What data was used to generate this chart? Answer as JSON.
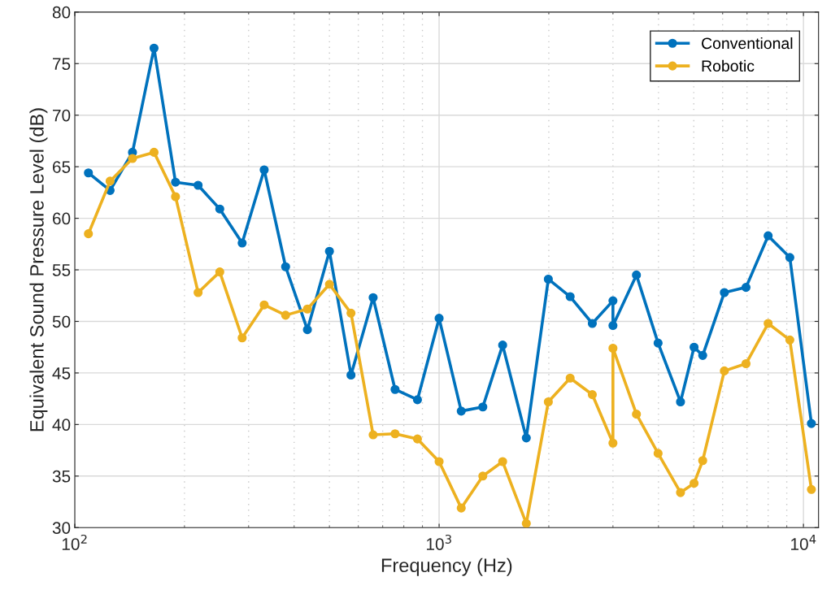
{
  "chart_data": {
    "type": "line",
    "xlabel": "Frequency (Hz)",
    "ylabel": "Equivalent Sound Pressure Level (dB)",
    "x": [
      109,
      125,
      144,
      165,
      189,
      218,
      250,
      288,
      331,
      379,
      435,
      500,
      573,
      659,
      757,
      872,
      1000,
      1150,
      1318,
      1494,
      1735,
      1994,
      2289,
      2633,
      3000,
      3000,
      3480,
      3990,
      4598,
      5009,
      5290,
      6066,
      6955,
      8000,
      9175,
      10515
    ],
    "series": [
      {
        "name": "Conventional",
        "color": "#0072bd",
        "values": [
          64.4,
          62.7,
          66.4,
          76.5,
          63.5,
          63.2,
          60.9,
          57.6,
          64.7,
          55.3,
          49.2,
          56.8,
          44.8,
          52.3,
          43.4,
          42.4,
          50.3,
          41.3,
          41.7,
          47.7,
          38.7,
          54.1,
          52.4,
          49.8,
          52.0,
          49.6,
          54.5,
          47.9,
          42.2,
          47.5,
          46.7,
          52.8,
          53.3,
          58.3,
          56.2,
          40.1
        ]
      },
      {
        "name": "Robotic",
        "color": "#edb120",
        "values": [
          58.5,
          63.6,
          65.8,
          66.4,
          62.1,
          52.8,
          54.8,
          48.4,
          51.6,
          50.6,
          51.2,
          53.6,
          50.8,
          39.0,
          39.1,
          38.6,
          36.4,
          31.9,
          35.0,
          36.4,
          30.4,
          42.2,
          44.5,
          42.9,
          38.2,
          47.4,
          41.0,
          37.2,
          33.4,
          34.3,
          36.5,
          45.2,
          45.9,
          49.8,
          48.2,
          33.7
        ]
      }
    ],
    "log": "x",
    "xlim": [
      100,
      11000
    ],
    "xticks": [
      {
        "value": 100,
        "label": "10$^{2}$"
      },
      {
        "value": 1000,
        "label": "10$^{3}$"
      },
      {
        "value": 10000,
        "label": "10$^{4}$"
      }
    ],
    "ylim": [
      30,
      80
    ],
    "yticks": [
      30,
      35,
      40,
      45,
      50,
      55,
      60,
      65,
      70,
      75,
      80
    ],
    "grid": true,
    "legend": "top right",
    "marker": "circle",
    "line_style": "solid"
  }
}
